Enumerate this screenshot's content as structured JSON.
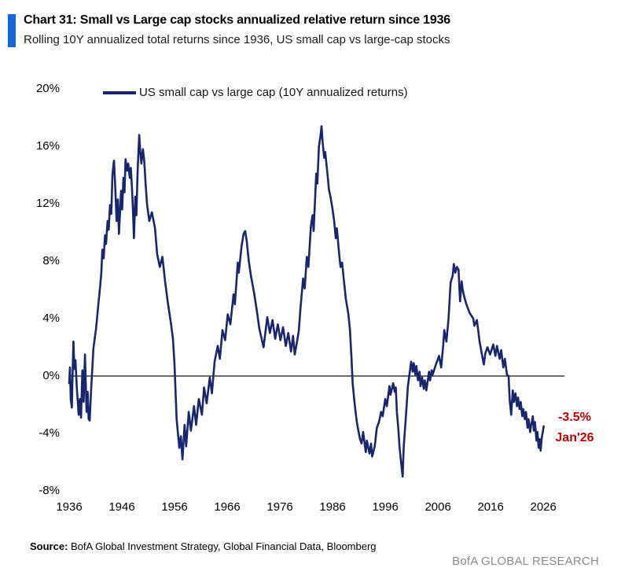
{
  "header": {
    "title": "Chart 31: Small vs Large cap stocks annualized relative return since 1936",
    "subtitle": "Rolling 10Y annualized total returns since 1936, US small cap vs large-cap stocks",
    "accent_color": "#1266d9"
  },
  "annotation": {
    "value": "-3.5%",
    "date": "Jan'26",
    "color": "#c00000"
  },
  "footer": {
    "source_label": "Source:",
    "source_text": " BofA Global Investment Strategy, Global Financial Data, Bloomberg",
    "brand": "BofA GLOBAL RESEARCH"
  },
  "chart_data": {
    "type": "line",
    "title": "Chart 31: Small vs Large cap stocks annualized relative return since 1936",
    "legend_position": "top",
    "grid": "zero-line-only",
    "zero_line_color": "#3f3f3f",
    "xlim": [
      1936,
      2030
    ],
    "ylim": [
      -8,
      20
    ],
    "x_ticks": [
      1936,
      1946,
      1956,
      1966,
      1976,
      1986,
      1996,
      2006,
      2016,
      2026
    ],
    "y_ticks": [
      {
        "v": 20,
        "label": "20%"
      },
      {
        "v": 16,
        "label": "16%"
      },
      {
        "v": 12,
        "label": "12%"
      },
      {
        "v": 8,
        "label": "8%"
      },
      {
        "v": 4,
        "label": "4%"
      },
      {
        "v": 0,
        "label": "0%"
      },
      {
        "v": -4,
        "label": "-4%"
      },
      {
        "v": -8,
        "label": "-8%"
      }
    ],
    "end_label": {
      "value": "-3.5%",
      "date": "Jan'26"
    },
    "series": [
      {
        "name": "US small cap vs large cap (10Y annualized returns)",
        "color": "#17266f",
        "points": [
          [
            1936.0,
            -0.5
          ],
          [
            1936.15,
            0.6
          ],
          [
            1936.3,
            -1.6
          ],
          [
            1936.5,
            -2.2
          ],
          [
            1936.65,
            0.3
          ],
          [
            1936.8,
            2.4
          ],
          [
            1937.0,
            0.5
          ],
          [
            1937.2,
            1.1
          ],
          [
            1937.45,
            -0.8
          ],
          [
            1937.8,
            -2.7
          ],
          [
            1938.05,
            -1.6
          ],
          [
            1938.25,
            -2.9
          ],
          [
            1938.5,
            0.4
          ],
          [
            1938.75,
            -1.8
          ],
          [
            1939.0,
            1.5
          ],
          [
            1939.3,
            -2.5
          ],
          [
            1939.5,
            -1.1
          ],
          [
            1939.7,
            -3.0
          ],
          [
            1939.9,
            -3.1
          ],
          [
            1940.1,
            -1.4
          ],
          [
            1940.35,
            0.3
          ],
          [
            1940.6,
            1.9
          ],
          [
            1940.8,
            2.5
          ],
          [
            1941.1,
            3.3
          ],
          [
            1941.35,
            4.3
          ],
          [
            1941.6,
            5.2
          ],
          [
            1941.9,
            6.3
          ],
          [
            1942.1,
            7.2
          ],
          [
            1942.3,
            8.8
          ],
          [
            1942.55,
            8.2
          ],
          [
            1942.8,
            9.8
          ],
          [
            1943.0,
            9.2
          ],
          [
            1943.3,
            10.8
          ],
          [
            1943.5,
            10.2
          ],
          [
            1943.75,
            11.9
          ],
          [
            1944.0,
            11.3
          ],
          [
            1944.2,
            14.0
          ],
          [
            1944.5,
            15.0
          ],
          [
            1944.75,
            13.2
          ],
          [
            1945.0,
            10.8
          ],
          [
            1945.25,
            12.3
          ],
          [
            1945.45,
            9.9
          ],
          [
            1945.65,
            11.4
          ],
          [
            1945.85,
            12.9
          ],
          [
            1946.05,
            11.6
          ],
          [
            1946.3,
            13.8
          ],
          [
            1946.5,
            12.8
          ],
          [
            1946.7,
            15.1
          ],
          [
            1947.0,
            14.3
          ],
          [
            1947.2,
            14.8
          ],
          [
            1947.5,
            13.8
          ],
          [
            1947.7,
            14.5
          ],
          [
            1947.9,
            13.2
          ],
          [
            1948.1,
            11.6
          ],
          [
            1948.3,
            9.6
          ],
          [
            1948.55,
            12.5
          ],
          [
            1948.75,
            11.2
          ],
          [
            1949.0,
            14.3
          ],
          [
            1949.3,
            16.8
          ],
          [
            1949.5,
            15.6
          ],
          [
            1949.7,
            14.8
          ],
          [
            1950.0,
            15.8
          ],
          [
            1950.25,
            15.0
          ],
          [
            1950.5,
            13.4
          ],
          [
            1950.8,
            11.9
          ],
          [
            1951.2,
            10.8
          ],
          [
            1951.7,
            11.4
          ],
          [
            1952.3,
            10.3
          ],
          [
            1952.7,
            8.5
          ],
          [
            1953.2,
            7.6
          ],
          [
            1953.7,
            8.3
          ],
          [
            1954.2,
            6.6
          ],
          [
            1954.7,
            5.2
          ],
          [
            1955.3,
            3.7
          ],
          [
            1955.7,
            2.6
          ],
          [
            1956.0,
            0.8
          ],
          [
            1956.4,
            -3.0
          ],
          [
            1956.9,
            -5.0
          ],
          [
            1957.2,
            -4.2
          ],
          [
            1957.5,
            -5.8
          ],
          [
            1957.9,
            -3.4
          ],
          [
            1958.2,
            -4.9
          ],
          [
            1958.7,
            -2.5
          ],
          [
            1959.1,
            -3.8
          ],
          [
            1959.7,
            -2.1
          ],
          [
            1960.1,
            -3.4
          ],
          [
            1960.6,
            -1.6
          ],
          [
            1961.2,
            -2.7
          ],
          [
            1961.6,
            -0.8
          ],
          [
            1962.1,
            -1.9
          ],
          [
            1962.7,
            -0.1
          ],
          [
            1963.1,
            -1.2
          ],
          [
            1963.6,
            1.0
          ],
          [
            1964.2,
            2.1
          ],
          [
            1964.6,
            1.2
          ],
          [
            1965.1,
            3.2
          ],
          [
            1965.6,
            2.5
          ],
          [
            1966.1,
            4.3
          ],
          [
            1966.6,
            3.6
          ],
          [
            1967.2,
            5.7
          ],
          [
            1967.45,
            5.0
          ],
          [
            1968.0,
            7.9
          ],
          [
            1968.2,
            7.2
          ],
          [
            1968.7,
            9.0
          ],
          [
            1969.1,
            9.9
          ],
          [
            1969.4,
            10.1
          ],
          [
            1969.7,
            9.4
          ],
          [
            1970.1,
            8.0
          ],
          [
            1970.5,
            7.0
          ],
          [
            1971.1,
            5.8
          ],
          [
            1971.6,
            4.6
          ],
          [
            1972.1,
            3.3
          ],
          [
            1972.9,
            2.0
          ],
          [
            1973.6,
            4.1
          ],
          [
            1974.1,
            3.0
          ],
          [
            1974.6,
            3.9
          ],
          [
            1975.1,
            2.6
          ],
          [
            1975.6,
            3.6
          ],
          [
            1976.1,
            2.5
          ],
          [
            1976.6,
            3.4
          ],
          [
            1977.1,
            2.1
          ],
          [
            1977.6,
            3.0
          ],
          [
            1978.1,
            1.7
          ],
          [
            1978.5,
            2.8
          ],
          [
            1978.8,
            1.5
          ],
          [
            1979.3,
            2.5
          ],
          [
            1979.6,
            3.2
          ],
          [
            1979.9,
            4.7
          ],
          [
            1980.4,
            6.8
          ],
          [
            1980.7,
            6.1
          ],
          [
            1981.1,
            8.3
          ],
          [
            1981.4,
            7.6
          ],
          [
            1981.9,
            10.5
          ],
          [
            1982.2,
            11.2
          ],
          [
            1982.4,
            10.1
          ],
          [
            1982.9,
            14.1
          ],
          [
            1983.1,
            13.4
          ],
          [
            1983.4,
            16.0
          ],
          [
            1983.7,
            16.7
          ],
          [
            1983.9,
            17.4
          ],
          [
            1984.1,
            16.3
          ],
          [
            1984.4,
            15.2
          ],
          [
            1984.6,
            15.6
          ],
          [
            1985.1,
            13.8
          ],
          [
            1985.3,
            13.0
          ],
          [
            1985.6,
            12.5
          ],
          [
            1986.0,
            11.6
          ],
          [
            1986.3,
            10.8
          ],
          [
            1986.6,
            9.6
          ],
          [
            1986.8,
            10.3
          ],
          [
            1987.3,
            8.3
          ],
          [
            1987.5,
            7.6
          ],
          [
            1987.8,
            7.9
          ],
          [
            1988.1,
            6.8
          ],
          [
            1988.5,
            5.4
          ],
          [
            1989.0,
            4.3
          ],
          [
            1989.3,
            3.2
          ],
          [
            1989.6,
            1.2
          ],
          [
            1989.8,
            -0.5
          ],
          [
            1990.2,
            -2.0
          ],
          [
            1990.6,
            -3.2
          ],
          [
            1990.9,
            -3.8
          ],
          [
            1991.2,
            -4.4
          ],
          [
            1991.5,
            -4.7
          ],
          [
            1991.8,
            -3.9
          ],
          [
            1992.3,
            -5.3
          ],
          [
            1992.5,
            -4.5
          ],
          [
            1993.0,
            -5.4
          ],
          [
            1993.3,
            -4.7
          ],
          [
            1993.5,
            -5.6
          ],
          [
            1994.0,
            -4.9
          ],
          [
            1994.4,
            -3.6
          ],
          [
            1994.8,
            -3.2
          ],
          [
            1995.2,
            -2.5
          ],
          [
            1995.5,
            -2.8
          ],
          [
            1996.0,
            -1.6
          ],
          [
            1996.3,
            -2.1
          ],
          [
            1996.8,
            -0.7
          ],
          [
            1997.0,
            -1.3
          ],
          [
            1997.5,
            -0.5
          ],
          [
            1997.8,
            -1.1
          ],
          [
            1998.0,
            -0.8
          ],
          [
            1998.2,
            -2.5
          ],
          [
            1998.5,
            -3.8
          ],
          [
            1998.7,
            -4.9
          ],
          [
            1999.0,
            -6.0
          ],
          [
            1999.3,
            -7.0
          ],
          [
            1999.5,
            -4.9
          ],
          [
            1999.8,
            -3.4
          ],
          [
            2000.1,
            -1.8
          ],
          [
            2000.3,
            -0.7
          ],
          [
            2000.7,
            0.4
          ],
          [
            2000.9,
            1.0
          ],
          [
            2001.2,
            0.3
          ],
          [
            2001.4,
            0.9
          ],
          [
            2001.7,
            0.1
          ],
          [
            2001.9,
            0.7
          ],
          [
            2002.2,
            -0.3
          ],
          [
            2002.5,
            0.3
          ],
          [
            2002.7,
            -0.7
          ],
          [
            2003.0,
            -0.1
          ],
          [
            2003.3,
            -0.9
          ],
          [
            2003.5,
            -0.3
          ],
          [
            2003.8,
            -1.0
          ],
          [
            2004.0,
            -0.5
          ],
          [
            2004.3,
            0.3
          ],
          [
            2004.5,
            -0.3
          ],
          [
            2004.8,
            0.4
          ],
          [
            2005.0,
            0.1
          ],
          [
            2005.6,
            0.8
          ],
          [
            2006.2,
            1.4
          ],
          [
            2006.6,
            0.6
          ],
          [
            2007.0,
            2.2
          ],
          [
            2007.2,
            3.2
          ],
          [
            2007.6,
            2.4
          ],
          [
            2008.0,
            4.0
          ],
          [
            2008.4,
            6.5
          ],
          [
            2008.8,
            7.0
          ],
          [
            2009.0,
            7.8
          ],
          [
            2009.3,
            7.2
          ],
          [
            2009.6,
            7.6
          ],
          [
            2009.9,
            7.4
          ],
          [
            2010.2,
            5.2
          ],
          [
            2010.5,
            6.6
          ],
          [
            2010.7,
            6.0
          ],
          [
            2011.0,
            5.5
          ],
          [
            2011.4,
            5.0
          ],
          [
            2012.0,
            4.4
          ],
          [
            2012.7,
            4.0
          ],
          [
            2012.9,
            3.5
          ],
          [
            2013.4,
            3.9
          ],
          [
            2013.9,
            2.4
          ],
          [
            2014.4,
            1.4
          ],
          [
            2014.7,
            0.8
          ],
          [
            2015.0,
            1.6
          ],
          [
            2015.4,
            2.0
          ],
          [
            2015.9,
            1.5
          ],
          [
            2016.5,
            2.2
          ],
          [
            2016.9,
            1.4
          ],
          [
            2017.2,
            2.1
          ],
          [
            2017.7,
            1.2
          ],
          [
            2018.0,
            1.8
          ],
          [
            2018.4,
            0.6
          ],
          [
            2018.7,
            1.2
          ],
          [
            2019.1,
            0.1
          ],
          [
            2019.4,
            0.0
          ],
          [
            2019.6,
            -1.6
          ],
          [
            2019.9,
            -2.7
          ],
          [
            2020.2,
            -1.0
          ],
          [
            2020.4,
            -1.8
          ],
          [
            2020.7,
            -1.2
          ],
          [
            2021.0,
            -2.1
          ],
          [
            2021.2,
            -1.5
          ],
          [
            2021.5,
            -2.3
          ],
          [
            2021.7,
            -1.8
          ],
          [
            2022.0,
            -2.8
          ],
          [
            2022.2,
            -2.3
          ],
          [
            2022.5,
            -3.0
          ],
          [
            2022.7,
            -2.5
          ],
          [
            2023.0,
            -3.6
          ],
          [
            2023.2,
            -3.0
          ],
          [
            2023.5,
            -3.9
          ],
          [
            2023.7,
            -3.4
          ],
          [
            2024.0,
            -2.8
          ],
          [
            2024.2,
            -3.8
          ],
          [
            2024.4,
            -3.2
          ],
          [
            2024.7,
            -4.5
          ],
          [
            2024.9,
            -3.9
          ],
          [
            2025.1,
            -5.0
          ],
          [
            2025.3,
            -4.4
          ],
          [
            2025.5,
            -5.2
          ],
          [
            2025.7,
            -4.3
          ],
          [
            2025.9,
            -3.9
          ],
          [
            2026.08,
            -3.5
          ]
        ]
      }
    ]
  }
}
